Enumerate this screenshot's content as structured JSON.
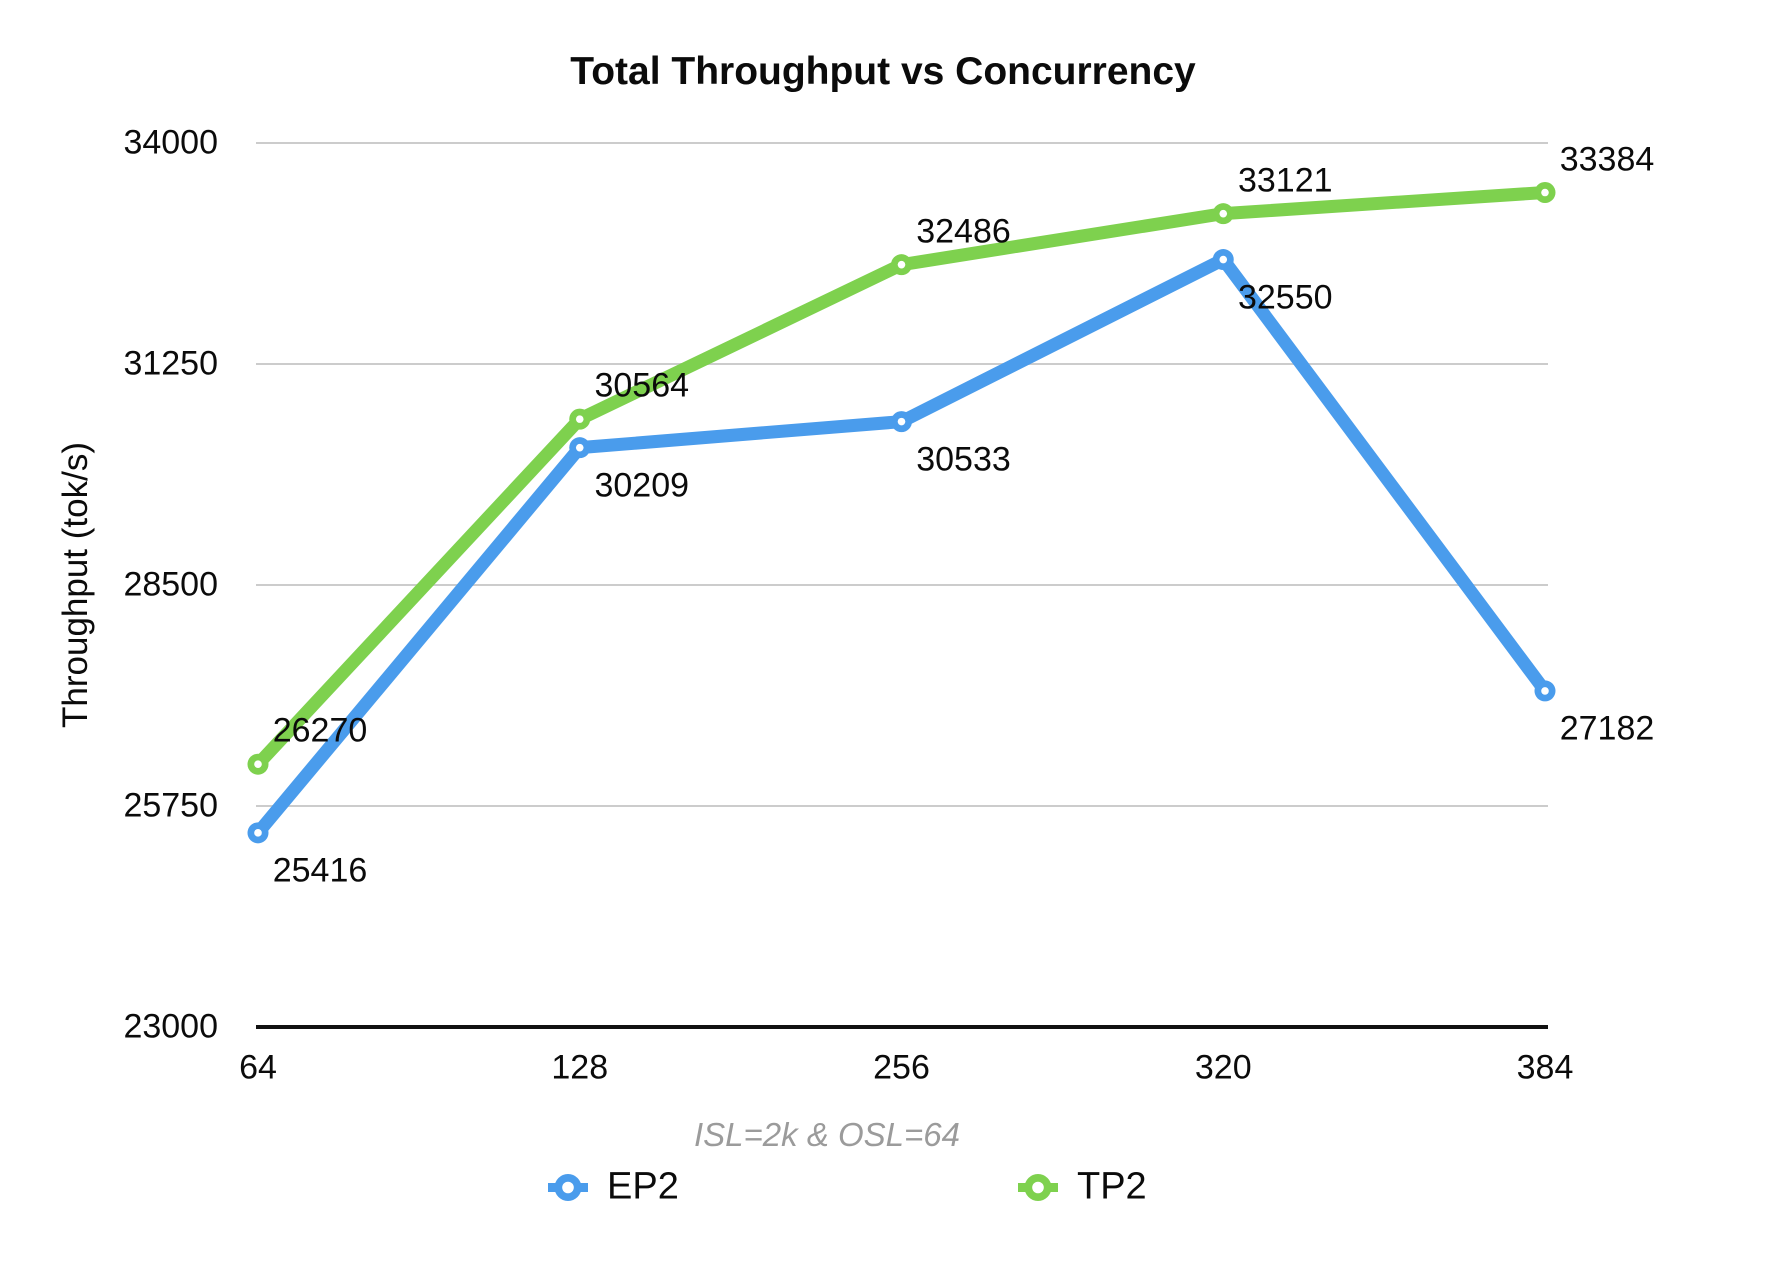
{
  "chart_data": {
    "type": "line",
    "title": "Total Throughput vs Concurrency",
    "subtitle": "ISL=2k & OSL=64",
    "ylabel": "Throughput (tok/s)",
    "xlabel": "",
    "categories": [
      "64",
      "128",
      "256",
      "320",
      "384"
    ],
    "series": [
      {
        "name": "EP2",
        "color": "#4a9cec",
        "values": [
          25416,
          30209,
          30533,
          32550,
          27182
        ],
        "label_placement": "below"
      },
      {
        "name": "TP2",
        "color": "#7ed14e",
        "values": [
          26270,
          30564,
          32486,
          33121,
          33384
        ],
        "label_placement": "above"
      }
    ],
    "y_ticks": [
      23000,
      25750,
      28500,
      31250,
      34000
    ],
    "ylim": [
      23000,
      34000
    ],
    "grid": true,
    "legend_position": "bottom",
    "colors": {
      "gridline": "#cccccc",
      "axis": "#111111",
      "text": "#0b0b0b",
      "subtitle_gray": "#9b9b9b"
    }
  }
}
